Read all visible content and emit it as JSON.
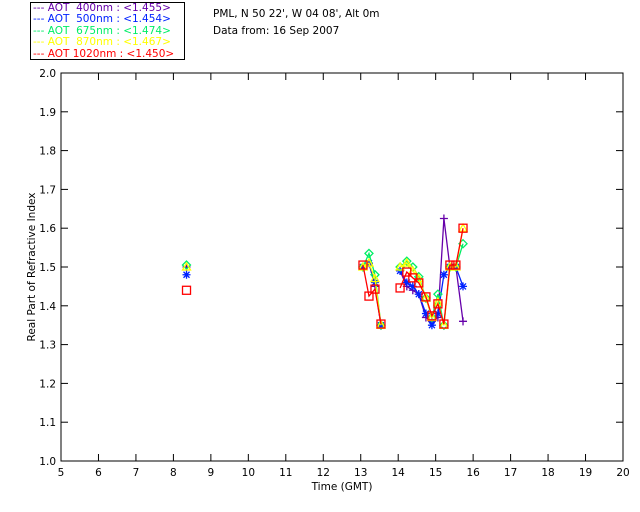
{
  "header": {
    "location": "PML, N 50 22', W 04 08', Alt 0m",
    "date_line": "Data from: 16 Sep 2007"
  },
  "legend": [
    {
      "label": "AOT  400nm : <1.455>",
      "color": "#6600aa"
    },
    {
      "label": "AOT  500nm : <1.454>",
      "color": "#0022ff"
    },
    {
      "label": "AOT  675nm : <1.474>",
      "color": "#00ee66"
    },
    {
      "label": "AOT  870nm : <1.467>",
      "color": "#ffff00"
    },
    {
      "label": "AOT 1020nm : <1.450>",
      "color": "#ff0000"
    }
  ],
  "chart_data": {
    "type": "line",
    "title": "",
    "xlabel": "Time (GMT)",
    "ylabel": "Real Part of Refractive Index",
    "xlim": [
      5,
      20
    ],
    "ylim": [
      1.0,
      2.0
    ],
    "xticks": [
      "5",
      "6",
      "7",
      "8",
      "9",
      "10",
      "11",
      "12",
      "13",
      "14",
      "15",
      "16",
      "17",
      "18",
      "19",
      "20"
    ],
    "yticks": [
      "1.0",
      "1.1",
      "1.2",
      "1.3",
      "1.4",
      "1.5",
      "1.6",
      "1.7",
      "1.8",
      "1.9",
      "2.0"
    ],
    "x": [
      8.35,
      null,
      13.06,
      13.22,
      13.38,
      13.54,
      null,
      14.05,
      14.23,
      14.39,
      14.55,
      14.74,
      14.9,
      15.06,
      15.22,
      15.38,
      15.54,
      15.73
    ],
    "series": [
      {
        "name": "AOT 400nm",
        "marker": "plus",
        "color": "#6600aa",
        "values": [
          1.5,
          null,
          1.5,
          1.51,
          1.45,
          1.35,
          null,
          1.49,
          1.45,
          1.44,
          1.43,
          1.37,
          1.36,
          1.37,
          1.625,
          1.5,
          1.5,
          1.36
        ]
      },
      {
        "name": "AOT 500nm",
        "marker": "star",
        "color": "#0022ff",
        "values": [
          1.48,
          null,
          1.5,
          1.51,
          1.46,
          1.35,
          null,
          1.49,
          1.46,
          1.45,
          1.43,
          1.38,
          1.35,
          1.38,
          1.48,
          1.5,
          1.5,
          1.45
        ]
      },
      {
        "name": "AOT 675nm",
        "marker": "diamond",
        "color": "#00ee66",
        "values": [
          1.505,
          null,
          1.5,
          1.535,
          1.48,
          1.35,
          null,
          1.5,
          1.515,
          1.5,
          1.475,
          1.42,
          1.37,
          1.43,
          1.35,
          1.5,
          1.5,
          1.56
        ]
      },
      {
        "name": "AOT 870nm",
        "marker": "triangle",
        "color": "#ffff00",
        "values": [
          1.5,
          null,
          1.5,
          1.51,
          1.47,
          1.35,
          null,
          1.5,
          1.51,
          1.49,
          1.47,
          1.42,
          1.37,
          1.41,
          1.35,
          1.5,
          1.5,
          1.6
        ]
      },
      {
        "name": "AOT 1020nm",
        "marker": "square",
        "color": "#ff0000",
        "values": [
          1.44,
          null,
          1.505,
          1.425,
          1.443,
          1.353,
          null,
          1.446,
          1.487,
          1.472,
          1.459,
          1.423,
          1.374,
          1.405,
          1.353,
          1.505,
          1.505,
          1.6
        ]
      }
    ],
    "grid": false,
    "legend_position": "top-left"
  }
}
